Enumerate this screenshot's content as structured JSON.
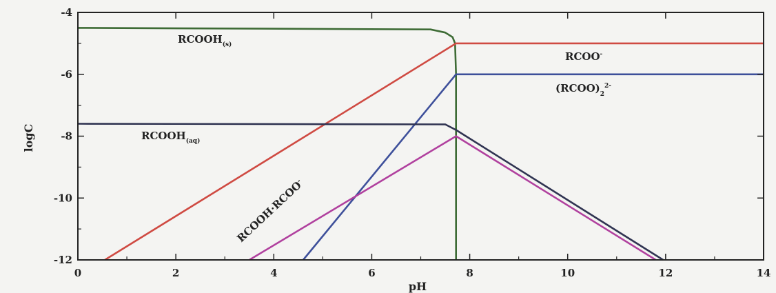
{
  "chart_data": {
    "type": "line",
    "xlabel": "pH",
    "ylabel": "logC",
    "xlim": [
      0,
      14
    ],
    "ylim": [
      -12,
      -4
    ],
    "x_ticks": [
      "0",
      "2",
      "4",
      "6",
      "8",
      "10",
      "12",
      "14"
    ],
    "y_ticks": [
      "-4",
      "-6",
      "-8",
      "-10",
      "-12"
    ],
    "grid": false,
    "labels": {
      "rcooh_s": "RCOOH",
      "rcooh_s_sub": "(s)",
      "rcoo": "RCOO",
      "rcoo_sup": "-",
      "rcoo2": "(RCOO)",
      "rcoo2_sub": "2",
      "rcoo2_sup": "2-",
      "rcooh_aq": "RCOOH",
      "rcooh_aq_sub": "(aq)",
      "acid_soap": "RCOOH·RCOO",
      "acid_soap_sup": "-"
    },
    "series": [
      {
        "key": "rcooh_solid",
        "color": "#3d6b35",
        "x": [
          0,
          7.2,
          7.5,
          7.65,
          7.7,
          7.72,
          7.72
        ],
        "y": [
          -4.5,
          -4.55,
          -4.65,
          -4.8,
          -5.0,
          -6.0,
          -12.0
        ]
      },
      {
        "key": "rcoo",
        "color": "#cf4a42",
        "x": [
          0.55,
          7.72,
          14
        ],
        "y": [
          -12.0,
          -5.0,
          -5.0
        ]
      },
      {
        "key": "rcoo2",
        "color": "#3d4f9a",
        "x": [
          4.6,
          7.72,
          14
        ],
        "y": [
          -12.0,
          -6.0,
          -6.0
        ]
      },
      {
        "key": "rcooh_aq",
        "color": "#303452",
        "x": [
          0,
          7.5,
          7.72,
          11.95
        ],
        "y": [
          -7.6,
          -7.62,
          -7.8,
          -12.0
        ]
      },
      {
        "key": "acid_soap",
        "color": "#b0409e",
        "x": [
          3.5,
          7.72,
          11.8
        ],
        "y": [
          -12.0,
          -8.0,
          -12.0
        ]
      }
    ]
  }
}
